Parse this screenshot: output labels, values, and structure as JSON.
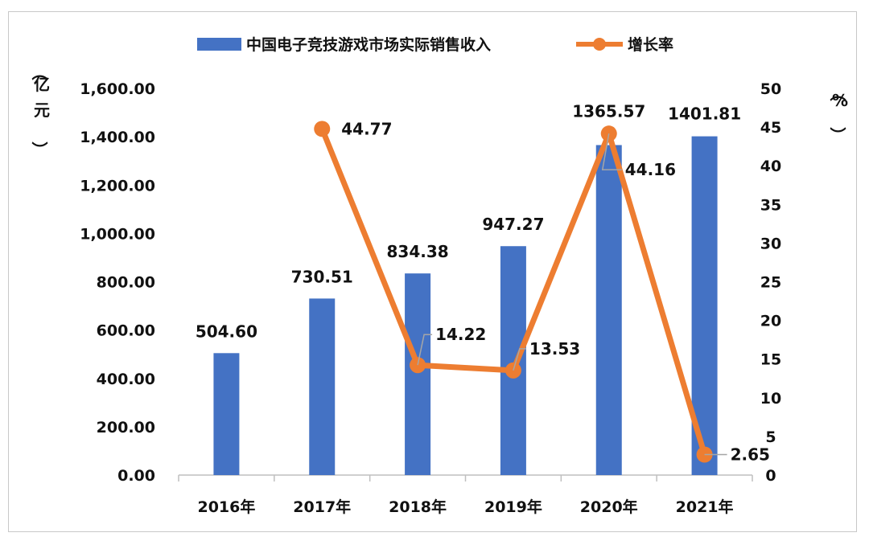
{
  "chart_data": {
    "type": "bar+line",
    "categories": [
      "2016年",
      "2017年",
      "2018年",
      "2019年",
      "2020年",
      "2021年"
    ],
    "series": [
      {
        "name": "中国电子竞技游戏市场实际销售收入",
        "type": "bar",
        "axis": "left",
        "color": "#4472C4",
        "values": [
          504.6,
          730.51,
          834.38,
          947.27,
          1365.57,
          1401.81
        ],
        "labels": [
          "504.60",
          "730.51",
          "834.38",
          "947.27",
          "1365.57",
          "1401.81"
        ]
      },
      {
        "name": "增长率",
        "type": "line",
        "axis": "right",
        "color": "#ED7D31",
        "values": [
          null,
          44.77,
          14.22,
          13.53,
          44.16,
          2.65
        ],
        "labels": [
          "",
          "44.77",
          "14.22",
          "13.53",
          "44.16",
          "2.65"
        ]
      }
    ],
    "y_left": {
      "unit": "（亿元）",
      "ylim": [
        0,
        1600
      ],
      "ticks": [
        "0.00",
        "200.00",
        "400.00",
        "600.00",
        "800.00",
        "1,000.00",
        "1,200.00",
        "1,400.00",
        "1,600.00"
      ]
    },
    "y_right": {
      "unit": "（%）",
      "ylim": [
        0,
        50
      ],
      "ticks": [
        "0",
        "5",
        "10",
        "15",
        "20",
        "25",
        "30",
        "35",
        "40",
        "45",
        "50"
      ]
    },
    "grid": false,
    "legend": "top"
  }
}
